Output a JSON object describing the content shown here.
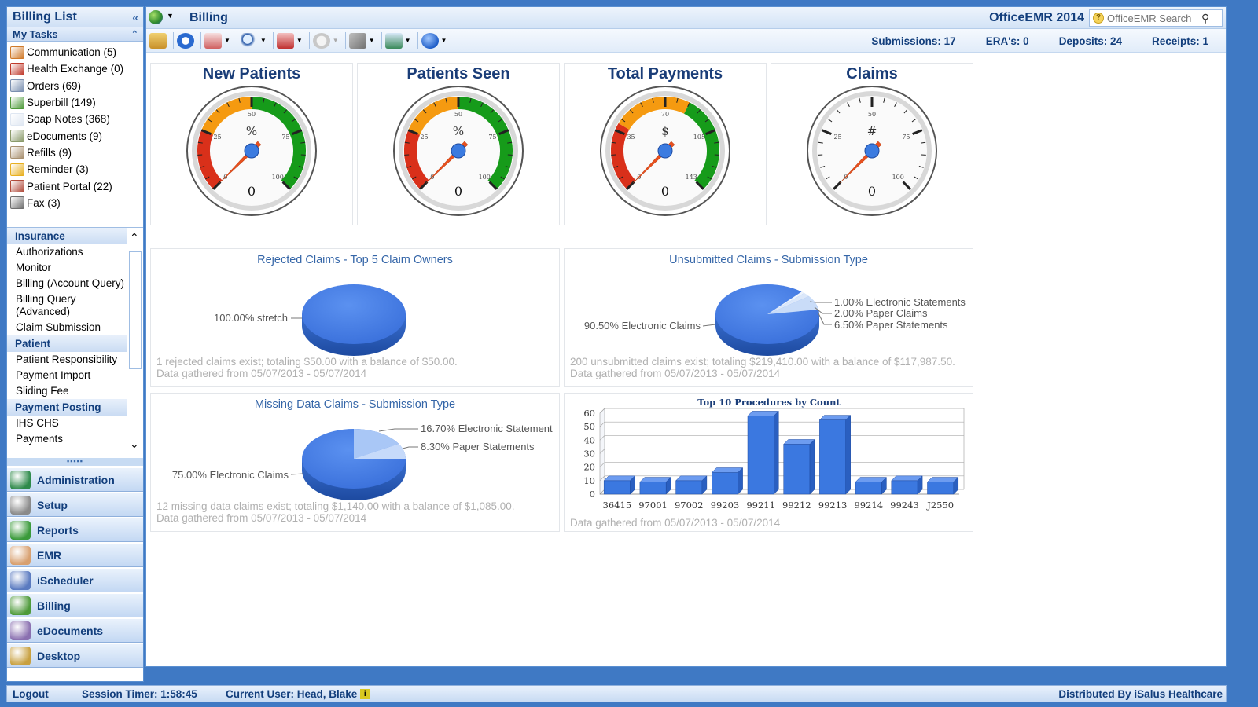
{
  "sidebar": {
    "title": "Billing List",
    "collapse_glyph": "«",
    "my_tasks_label": "My Tasks",
    "tasks": [
      {
        "label": "Communication (5)",
        "icon": "people-icon",
        "color": "#d07a2a"
      },
      {
        "label": "Health Exchange (0)",
        "icon": "exchange-icon",
        "color": "#c0392b"
      },
      {
        "label": "Orders (69)",
        "icon": "orders-icon",
        "color": "#7a8fb0"
      },
      {
        "label": "Superbill (149)",
        "icon": "superbill-icon",
        "color": "#4e9a3a"
      },
      {
        "label": "Soap Notes (368)",
        "icon": "notes-icon",
        "color": "#dfe7f2"
      },
      {
        "label": "eDocuments (9)",
        "icon": "edocuments-icon",
        "color": "#8a9a6a"
      },
      {
        "label": "Refills (9)",
        "icon": "refills-icon",
        "color": "#a89070"
      },
      {
        "label": "Reminder (3)",
        "icon": "bell-icon",
        "color": "#e8b020"
      },
      {
        "label": "Patient Portal (22)",
        "icon": "portal-icon",
        "color": "#b04a3a"
      },
      {
        "label": "Fax (3)",
        "icon": "fax-icon",
        "color": "#707070"
      }
    ],
    "menu": [
      {
        "type": "head",
        "label": "Insurance"
      },
      {
        "type": "item",
        "label": "Authorizations"
      },
      {
        "type": "item",
        "label": "Monitor"
      },
      {
        "type": "item",
        "label": "Billing (Account Query)"
      },
      {
        "type": "item",
        "label": "Billing Query (Advanced)"
      },
      {
        "type": "item",
        "label": "Claim Submission"
      },
      {
        "type": "head",
        "label": "Patient"
      },
      {
        "type": "item",
        "label": "Patient Responsibility"
      },
      {
        "type": "item",
        "label": "Payment Import"
      },
      {
        "type": "item",
        "label": "Sliding Fee"
      },
      {
        "type": "head",
        "label": "Payment Posting"
      },
      {
        "type": "item",
        "label": "IHS CHS"
      },
      {
        "type": "item",
        "label": "Payments"
      }
    ],
    "nav": [
      {
        "label": "Administration",
        "icon": "globe-icon",
        "color": "#2e8a4a"
      },
      {
        "label": "Setup",
        "icon": "tools-icon",
        "color": "#8a8a8a"
      },
      {
        "label": "Reports",
        "icon": "reports-icon",
        "color": "#3a9a3a"
      },
      {
        "label": "EMR",
        "icon": "doctor-icon",
        "color": "#d8a070"
      },
      {
        "label": "iScheduler",
        "icon": "calendar-icon",
        "color": "#5a7ac0"
      },
      {
        "label": "Billing",
        "icon": "billing-icon",
        "color": "#4e9a3a"
      },
      {
        "label": "eDocuments",
        "icon": "edocuments-icon",
        "color": "#8a70b0"
      },
      {
        "label": "Desktop",
        "icon": "desktop-icon",
        "color": "#c8a040"
      }
    ]
  },
  "header": {
    "module": "Billing",
    "product": "OfficeEMR 2014",
    "search_placeholder": "OfficeEMR Search"
  },
  "stats": {
    "submissions": "Submissions: 17",
    "eras": "ERA's: 0",
    "deposits": "Deposits: 24",
    "receipts": "Receipts: 1"
  },
  "gauges": [
    {
      "title": "New Patients",
      "symbol": "%",
      "value": "0",
      "ticks": [
        "0",
        "25",
        "50",
        "75",
        "100"
      ],
      "bands": "rog"
    },
    {
      "title": "Patients Seen",
      "symbol": "%",
      "value": "0",
      "ticks": [
        "0",
        "25",
        "50",
        "75",
        "100"
      ],
      "bands": "rog"
    },
    {
      "title": "Total Payments",
      "symbol": "$",
      "value": "0",
      "ticks": [
        "0",
        "35",
        "70",
        "105",
        "143"
      ],
      "bands": "rog2"
    },
    {
      "title": "Claims",
      "symbol": "#",
      "value": "0",
      "ticks": [
        "0",
        "25",
        "50",
        "75",
        "100"
      ],
      "bands": "none"
    }
  ],
  "pies": {
    "rejected": {
      "title": "Rejected Claims - Top 5 Claim Owners",
      "slices": [
        {
          "label": "100.00% stretch",
          "value": 100
        }
      ],
      "foot1": "1 rejected claims exist; totaling $50.00 with a balance of $50.00.",
      "foot2": "Data gathered from 05/07/2013 - 05/07/2014"
    },
    "unsubmitted": {
      "title": "Unsubmitted Claims - Submission Type",
      "slices": [
        {
          "label": "90.50% Electronic Claims",
          "value": 90.5
        },
        {
          "label": "1.00% Electronic Statements",
          "value": 1.0
        },
        {
          "label": "2.00% Paper Claims",
          "value": 2.0
        },
        {
          "label": "6.50% Paper Statements",
          "value": 6.5
        }
      ],
      "foot1": "200 unsubmitted claims exist; totaling $219,410.00 with a balance of $117,987.50.",
      "foot2": "Data gathered from 05/07/2013 - 05/07/2014"
    },
    "missing": {
      "title": "Missing Data Claims - Submission Type",
      "slices": [
        {
          "label": "75.00% Electronic Claims",
          "value": 75.0
        },
        {
          "label": "16.70% Electronic Statement",
          "value": 16.7
        },
        {
          "label": "8.30% Paper Statements",
          "value": 8.3
        }
      ],
      "foot1": "12 missing data claims exist; totaling $1,140.00 with a balance of $1,085.00.",
      "foot2": "Data gathered from 05/07/2013 - 05/07/2014"
    }
  },
  "chart_data": {
    "type": "bar",
    "title": "Top 10 Procedures by Count",
    "categories": [
      "36415",
      "97001",
      "97002",
      "99203",
      "99211",
      "99212",
      "99213",
      "99214",
      "99243",
      "J2550"
    ],
    "values": [
      10,
      9,
      10,
      16,
      58,
      37,
      55,
      9,
      10,
      9
    ],
    "ylim": [
      0,
      60
    ],
    "yticks": [
      "0",
      "10",
      "20",
      "30",
      "40",
      "50",
      "60"
    ],
    "bar_color": "#3b78e0",
    "foot": "Data gathered from 05/07/2013 - 05/07/2014"
  },
  "status": {
    "logout": "Logout",
    "timer": "Session Timer: 1:58:45",
    "user": "Current User: Head, Blake",
    "distributed": "Distributed By iSalus Healthcare"
  }
}
